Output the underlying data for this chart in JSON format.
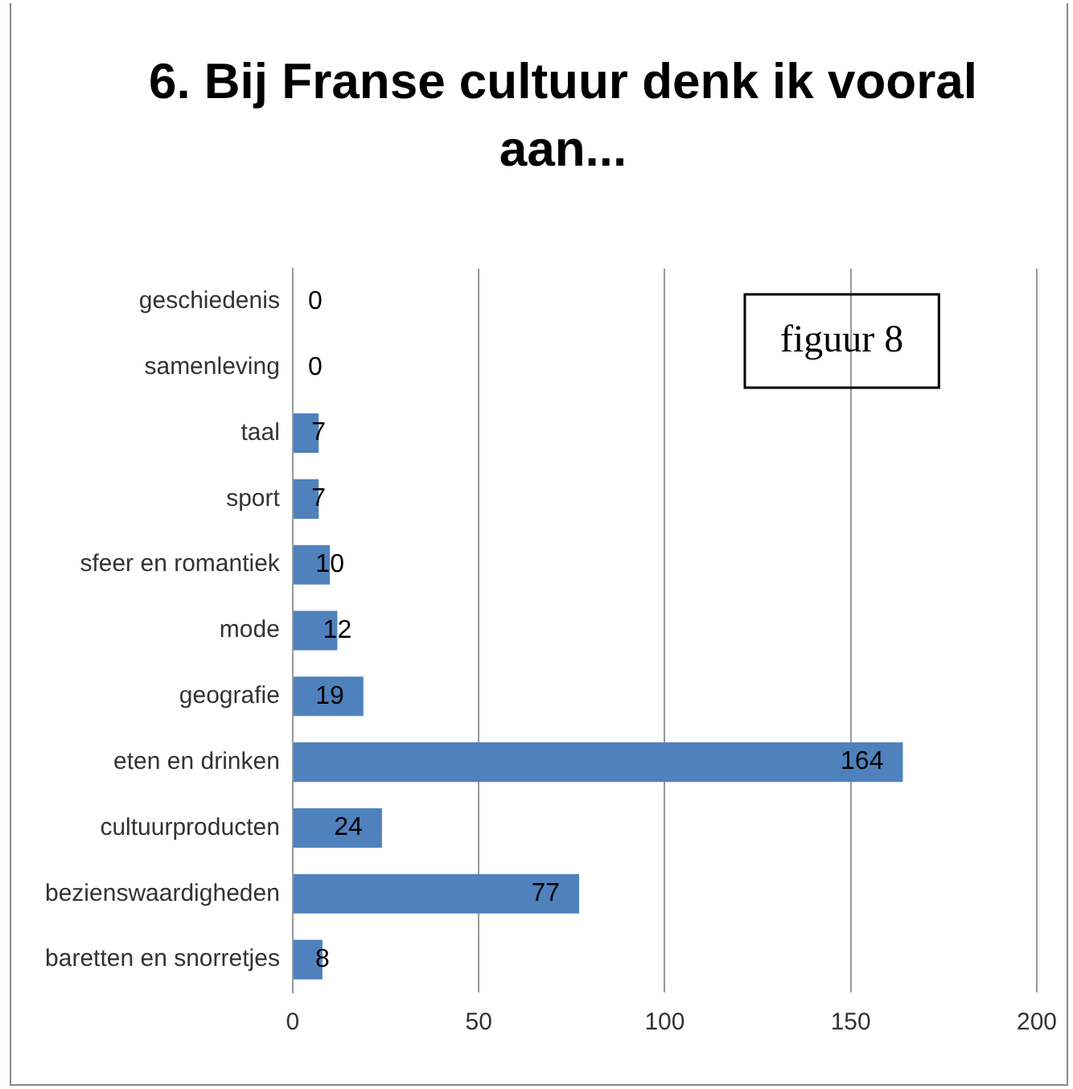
{
  "chart_data": {
    "type": "bar",
    "orientation": "horizontal",
    "title": "6. Bij Franse cultuur denk ik vooral aan...",
    "categories": [
      "geschiedenis",
      "samenleving",
      "taal",
      "sport",
      "sfeer en romantiek",
      "mode",
      "geografie",
      "eten en drinken",
      "cultuurproducten",
      "bezienswaardigheden",
      "baretten en snorretjes"
    ],
    "values": [
      0,
      0,
      7,
      7,
      10,
      12,
      19,
      164,
      24,
      77,
      8
    ],
    "color": "#4f81bd",
    "xlim": [
      0,
      200
    ],
    "xticks": [
      0,
      50,
      100,
      150,
      200
    ],
    "grid": "x",
    "data_labels": true,
    "legend": false,
    "annotations": [
      "figuur 8"
    ]
  }
}
